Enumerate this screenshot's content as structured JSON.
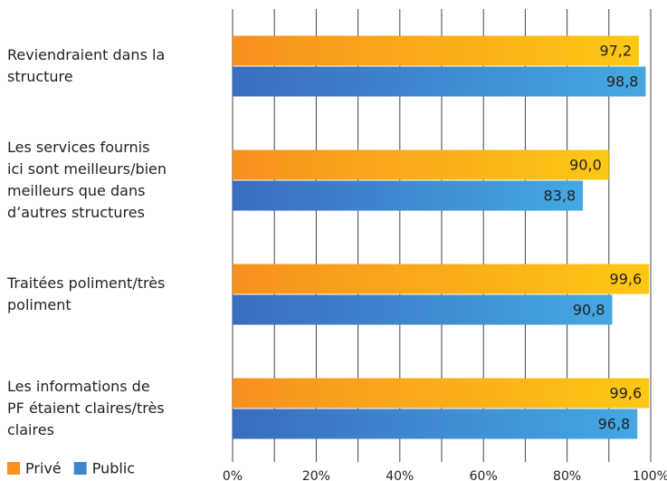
{
  "chart_data": {
    "type": "hbar",
    "categories": [
      "Reviendraient dans la\nstructure",
      "Les services fournis\nici sont meilleurs/bien\nmeilleurs que dans\nd’autres structures",
      "Traitées poliment/très\npoliment",
      "Les informations de\nPF étaient claires/très\nclaires"
    ],
    "series": [
      {
        "name": "Privé",
        "color": "#f7931e",
        "gradient": [
          "#f7901e",
          "#fdc815"
        ],
        "values": [
          97.2,
          90.0,
          99.6,
          99.6
        ],
        "value_labels": [
          "97,2",
          "90,0",
          "99,6",
          "99,6"
        ]
      },
      {
        "name": "Public",
        "color": "#3f86cc",
        "gradient": [
          "#3a6cbf",
          "#44a8e2"
        ],
        "values": [
          98.8,
          83.8,
          90.8,
          96.8
        ],
        "value_labels": [
          "98,8",
          "83,8",
          "90,8",
          "96,8"
        ]
      }
    ],
    "xlim": [
      0,
      100
    ],
    "xticks": [
      {
        "value": 0,
        "label": "0%"
      },
      {
        "value": 20,
        "label": "20%"
      },
      {
        "value": 40,
        "label": "40%"
      },
      {
        "value": 60,
        "label": "60%"
      },
      {
        "value": 80,
        "label": "80%"
      },
      {
        "value": 100,
        "label": "100%"
      }
    ],
    "minor_xticks": [
      10,
      30,
      50,
      70,
      90
    ],
    "grid": true,
    "legend": "bottom-left"
  }
}
